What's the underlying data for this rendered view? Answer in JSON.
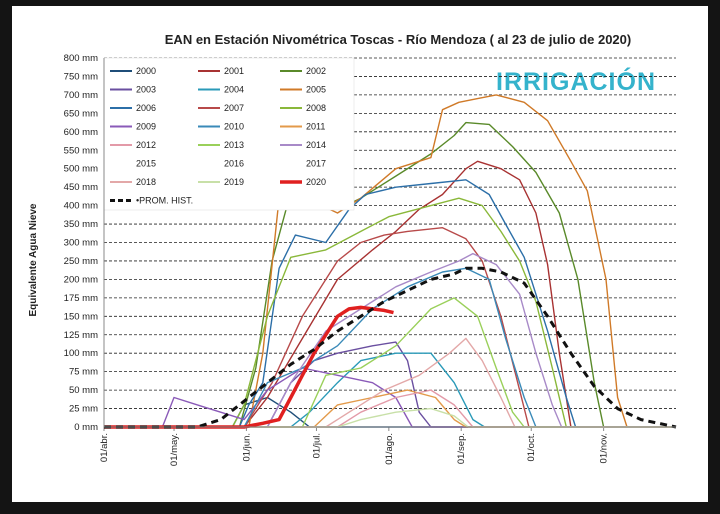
{
  "logo": "IRRIGACIÓN",
  "chart_data": {
    "type": "line",
    "title": "EAN en Estación Nivométrica Toscas - Río Mendoza  ( al 23 de julio de 2020)",
    "ylabel": "Equivalente Agua Nieve",
    "xlabel": "",
    "ylim": [
      0,
      800
    ],
    "y_ticks": [
      "0 mm",
      "25 mm",
      "50 mm",
      "75 mm",
      "100 mm",
      "125 mm",
      "150 mm",
      "175 mm",
      "200 mm",
      "250 mm",
      "300 mm",
      "350 mm",
      "400 mm",
      "450 mm",
      "500 mm",
      "550 mm",
      "600 mm",
      "650 mm",
      "700 mm",
      "750 mm",
      "800 mm"
    ],
    "x_ticks": [
      "01/abr.",
      "01/may.",
      "01/jun.",
      "01/jul.",
      "01/ago.",
      "01/sep.",
      "01/oct.",
      "01/nov."
    ],
    "x_unit": "day of season (0 = 01/abr.)",
    "xlim": [
      0,
      245
    ],
    "grid": "dashed horizontal",
    "legend": "top-left",
    "series": [
      {
        "name": "2000",
        "color": "#1f4e79",
        "values": [
          [
            0,
            0
          ],
          [
            55,
            0
          ],
          [
            60,
            30
          ],
          [
            70,
            40
          ],
          [
            80,
            20
          ],
          [
            88,
            0
          ],
          [
            245,
            0
          ]
        ]
      },
      {
        "name": "2001",
        "color": "#a83232",
        "values": [
          [
            0,
            0
          ],
          [
            60,
            0
          ],
          [
            70,
            40
          ],
          [
            85,
            120
          ],
          [
            100,
            200
          ],
          [
            115,
            280
          ],
          [
            125,
            330
          ],
          [
            135,
            390
          ],
          [
            145,
            430
          ],
          [
            155,
            500
          ],
          [
            160,
            520
          ],
          [
            170,
            500
          ],
          [
            178,
            470
          ],
          [
            185,
            380
          ],
          [
            190,
            240
          ],
          [
            195,
            100
          ],
          [
            200,
            0
          ],
          [
            245,
            0
          ]
        ]
      },
      {
        "name": "2002",
        "color": "#5a8a2a",
        "values": [
          [
            0,
            0
          ],
          [
            58,
            0
          ],
          [
            65,
            80
          ],
          [
            72,
            250
          ],
          [
            78,
            390
          ],
          [
            90,
            400
          ],
          [
            100,
            390
          ],
          [
            110,
            420
          ],
          [
            125,
            480
          ],
          [
            140,
            540
          ],
          [
            150,
            590
          ],
          [
            155,
            625
          ],
          [
            165,
            620
          ],
          [
            175,
            560
          ],
          [
            185,
            490
          ],
          [
            195,
            380
          ],
          [
            203,
            200
          ],
          [
            210,
            60
          ],
          [
            214,
            0
          ],
          [
            245,
            0
          ]
        ]
      },
      {
        "name": "2003",
        "color": "#6a4fa0",
        "values": [
          [
            0,
            0
          ],
          [
            70,
            0
          ],
          [
            80,
            60
          ],
          [
            90,
            90
          ],
          [
            100,
            100
          ],
          [
            115,
            110
          ],
          [
            125,
            115
          ],
          [
            130,
            90
          ],
          [
            135,
            20
          ],
          [
            140,
            0
          ],
          [
            245,
            0
          ]
        ]
      },
      {
        "name": "2004",
        "color": "#2a9ab8",
        "values": [
          [
            0,
            0
          ],
          [
            80,
            0
          ],
          [
            88,
            20
          ],
          [
            100,
            60
          ],
          [
            110,
            90
          ],
          [
            125,
            100
          ],
          [
            140,
            100
          ],
          [
            150,
            60
          ],
          [
            158,
            10
          ],
          [
            163,
            0
          ],
          [
            245,
            0
          ]
        ]
      },
      {
        "name": "2005",
        "color": "#d07a28",
        "values": [
          [
            0,
            0
          ],
          [
            62,
            0
          ],
          [
            68,
            100
          ],
          [
            75,
            420
          ],
          [
            90,
            410
          ],
          [
            100,
            380
          ],
          [
            110,
            420
          ],
          [
            125,
            500
          ],
          [
            140,
            530
          ],
          [
            145,
            660
          ],
          [
            152,
            680
          ],
          [
            160,
            690
          ],
          [
            168,
            700
          ],
          [
            180,
            680
          ],
          [
            190,
            630
          ],
          [
            200,
            520
          ],
          [
            207,
            440
          ],
          [
            215,
            200
          ],
          [
            220,
            40
          ],
          [
            224,
            0
          ],
          [
            245,
            0
          ]
        ]
      },
      {
        "name": "2006",
        "color": "#2c6fa8",
        "values": [
          [
            0,
            0
          ],
          [
            58,
            0
          ],
          [
            62,
            30
          ],
          [
            68,
            60
          ],
          [
            75,
            230
          ],
          [
            82,
            320
          ],
          [
            95,
            300
          ],
          [
            105,
            390
          ],
          [
            112,
            430
          ],
          [
            125,
            450
          ],
          [
            140,
            460
          ],
          [
            155,
            470
          ],
          [
            165,
            430
          ],
          [
            172,
            350
          ],
          [
            180,
            260
          ],
          [
            190,
            130
          ],
          [
            198,
            40
          ],
          [
            202,
            0
          ],
          [
            245,
            0
          ]
        ]
      },
      {
        "name": "2007",
        "color": "#b84a4a",
        "values": [
          [
            0,
            0
          ],
          [
            60,
            0
          ],
          [
            72,
            60
          ],
          [
            85,
            150
          ],
          [
            100,
            250
          ],
          [
            110,
            300
          ],
          [
            120,
            320
          ],
          [
            130,
            330
          ],
          [
            145,
            340
          ],
          [
            155,
            310
          ],
          [
            162,
            250
          ],
          [
            170,
            150
          ],
          [
            178,
            50
          ],
          [
            182,
            0
          ],
          [
            245,
            0
          ]
        ]
      },
      {
        "name": "2008",
        "color": "#8ab83a",
        "values": [
          [
            0,
            0
          ],
          [
            55,
            0
          ],
          [
            60,
            30
          ],
          [
            70,
            150
          ],
          [
            80,
            260
          ],
          [
            95,
            280
          ],
          [
            110,
            330
          ],
          [
            122,
            370
          ],
          [
            140,
            400
          ],
          [
            152,
            420
          ],
          [
            162,
            400
          ],
          [
            170,
            330
          ],
          [
            178,
            250
          ],
          [
            185,
            170
          ],
          [
            192,
            80
          ],
          [
            198,
            0
          ],
          [
            245,
            0
          ]
        ]
      },
      {
        "name": "2009",
        "color": "#8a5ab8",
        "values": [
          [
            0,
            0
          ],
          [
            25,
            0
          ],
          [
            30,
            40
          ],
          [
            40,
            30
          ],
          [
            50,
            20
          ],
          [
            60,
            10
          ],
          [
            70,
            50
          ],
          [
            85,
            80
          ],
          [
            100,
            70
          ],
          [
            115,
            60
          ],
          [
            125,
            40
          ],
          [
            132,
            0
          ],
          [
            245,
            0
          ]
        ]
      },
      {
        "name": "2010",
        "color": "#3a8ab8",
        "values": [
          [
            0,
            0
          ],
          [
            60,
            0
          ],
          [
            70,
            60
          ],
          [
            85,
            80
          ],
          [
            100,
            110
          ],
          [
            115,
            160
          ],
          [
            130,
            190
          ],
          [
            145,
            220
          ],
          [
            155,
            230
          ],
          [
            165,
            200
          ],
          [
            172,
            120
          ],
          [
            180,
            40
          ],
          [
            185,
            0
          ],
          [
            245,
            0
          ]
        ]
      },
      {
        "name": "2011",
        "color": "#e39a4a",
        "values": [
          [
            0,
            0
          ],
          [
            90,
            0
          ],
          [
            100,
            30
          ],
          [
            115,
            40
          ],
          [
            130,
            50
          ],
          [
            142,
            40
          ],
          [
            150,
            10
          ],
          [
            155,
            0
          ],
          [
            245,
            0
          ]
        ]
      },
      {
        "name": "2012",
        "color": "#e39aa8",
        "values": [
          [
            0,
            0
          ],
          [
            100,
            0
          ],
          [
            110,
            20
          ],
          [
            125,
            40
          ],
          [
            140,
            50
          ],
          [
            150,
            30
          ],
          [
            158,
            0
          ],
          [
            245,
            0
          ]
        ]
      },
      {
        "name": "2013",
        "color": "#9ad05a",
        "values": [
          [
            0,
            0
          ],
          [
            85,
            0
          ],
          [
            95,
            70
          ],
          [
            110,
            80
          ],
          [
            125,
            110
          ],
          [
            140,
            160
          ],
          [
            150,
            175
          ],
          [
            160,
            150
          ],
          [
            168,
            80
          ],
          [
            175,
            20
          ],
          [
            180,
            0
          ],
          [
            245,
            0
          ]
        ]
      },
      {
        "name": "2014",
        "color": "#a88ac8",
        "values": [
          [
            0,
            0
          ],
          [
            70,
            0
          ],
          [
            80,
            60
          ],
          [
            95,
            130
          ],
          [
            110,
            160
          ],
          [
            125,
            190
          ],
          [
            140,
            220
          ],
          [
            152,
            250
          ],
          [
            158,
            270
          ],
          [
            168,
            240
          ],
          [
            178,
            180
          ],
          [
            185,
            100
          ],
          [
            192,
            30
          ],
          [
            196,
            0
          ],
          [
            245,
            0
          ]
        ]
      },
      {
        "name": "2015",
        "color": "#ffffff",
        "values": []
      },
      {
        "name": "2016",
        "color": "#ffffff",
        "values": []
      },
      {
        "name": "2017",
        "color": "#ffffff",
        "values": []
      },
      {
        "name": "2018",
        "color": "#e3a8a8",
        "values": [
          [
            0,
            0
          ],
          [
            95,
            0
          ],
          [
            105,
            20
          ],
          [
            120,
            50
          ],
          [
            135,
            70
          ],
          [
            148,
            100
          ],
          [
            155,
            120
          ],
          [
            162,
            90
          ],
          [
            170,
            40
          ],
          [
            176,
            0
          ],
          [
            245,
            0
          ]
        ]
      },
      {
        "name": "2019",
        "color": "#c8e0a8",
        "values": [
          [
            0,
            0
          ],
          [
            100,
            0
          ],
          [
            110,
            10
          ],
          [
            125,
            20
          ],
          [
            140,
            25
          ],
          [
            150,
            15
          ],
          [
            156,
            0
          ],
          [
            245,
            0
          ]
        ]
      },
      {
        "name": "2020",
        "color": "#e02020",
        "values": [
          [
            0,
            0
          ],
          [
            60,
            0
          ],
          [
            68,
            5
          ],
          [
            75,
            10
          ],
          [
            80,
            40
          ],
          [
            85,
            70
          ],
          [
            90,
            100
          ],
          [
            95,
            125
          ],
          [
            100,
            150
          ],
          [
            105,
            160
          ],
          [
            110,
            162
          ],
          [
            115,
            160
          ],
          [
            120,
            158
          ],
          [
            124,
            155
          ]
        ]
      },
      {
        "name": "PROM. HIST.",
        "color": "#111111",
        "dashed": true,
        "values": [
          [
            0,
            0
          ],
          [
            40,
            0
          ],
          [
            50,
            10
          ],
          [
            60,
            35
          ],
          [
            70,
            60
          ],
          [
            80,
            85
          ],
          [
            90,
            105
          ],
          [
            100,
            130
          ],
          [
            110,
            150
          ],
          [
            120,
            170
          ],
          [
            130,
            185
          ],
          [
            140,
            200
          ],
          [
            150,
            215
          ],
          [
            155,
            230
          ],
          [
            162,
            230
          ],
          [
            170,
            220
          ],
          [
            180,
            195
          ],
          [
            190,
            150
          ],
          [
            200,
            100
          ],
          [
            210,
            55
          ],
          [
            220,
            25
          ],
          [
            230,
            10
          ],
          [
            245,
            0
          ]
        ]
      }
    ]
  }
}
